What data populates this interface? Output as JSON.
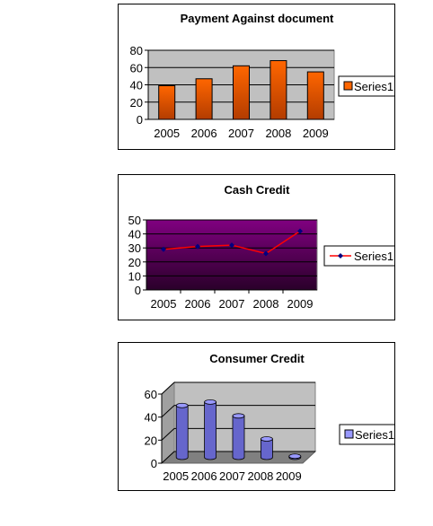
{
  "charts": [
    {
      "type": "bar",
      "title": "Payment Against document",
      "categories": [
        "2005",
        "2006",
        "2007",
        "2008",
        "2009"
      ],
      "series": [
        {
          "name": "Series1",
          "values": [
            39,
            47,
            62,
            68,
            55
          ]
        }
      ],
      "ylim": [
        0,
        80
      ],
      "yticks": [
        "0",
        "20",
        "40",
        "60",
        "80"
      ],
      "legend_position": "right",
      "grid": true,
      "colors": {
        "bar": "#ff6600",
        "bar_dark": "#b33c00",
        "plot_bg": "#c0c0c0"
      }
    },
    {
      "type": "line",
      "title": "Cash Credit",
      "categories": [
        "2005",
        "2006",
        "2007",
        "2008",
        "2009"
      ],
      "series": [
        {
          "name": "Series1",
          "values": [
            29,
            31,
            32,
            26,
            42
          ]
        }
      ],
      "ylim": [
        0,
        50
      ],
      "yticks": [
        "0",
        "10",
        "20",
        "30",
        "40",
        "50"
      ],
      "legend_position": "right",
      "grid": true,
      "colors": {
        "line": "#ff0000",
        "marker": "#000080",
        "plot_top": "#800080",
        "plot_bottom": "#2a002a"
      }
    },
    {
      "type": "bar",
      "title": "Consumer Credit",
      "categories": [
        "2005",
        "2006",
        "2007",
        "2008",
        "2009"
      ],
      "series": [
        {
          "name": "Series1",
          "values": [
            45,
            48,
            36,
            16,
            1
          ]
        }
      ],
      "ylim": [
        0,
        60
      ],
      "yticks": [
        "0",
        "20",
        "40",
        "60"
      ],
      "legend_position": "right",
      "grid": true,
      "colors": {
        "bar": "#9999ff",
        "bar_dark": "#6666cc",
        "plot_bg": "#c0c0c0",
        "floor": "#808080"
      }
    }
  ]
}
